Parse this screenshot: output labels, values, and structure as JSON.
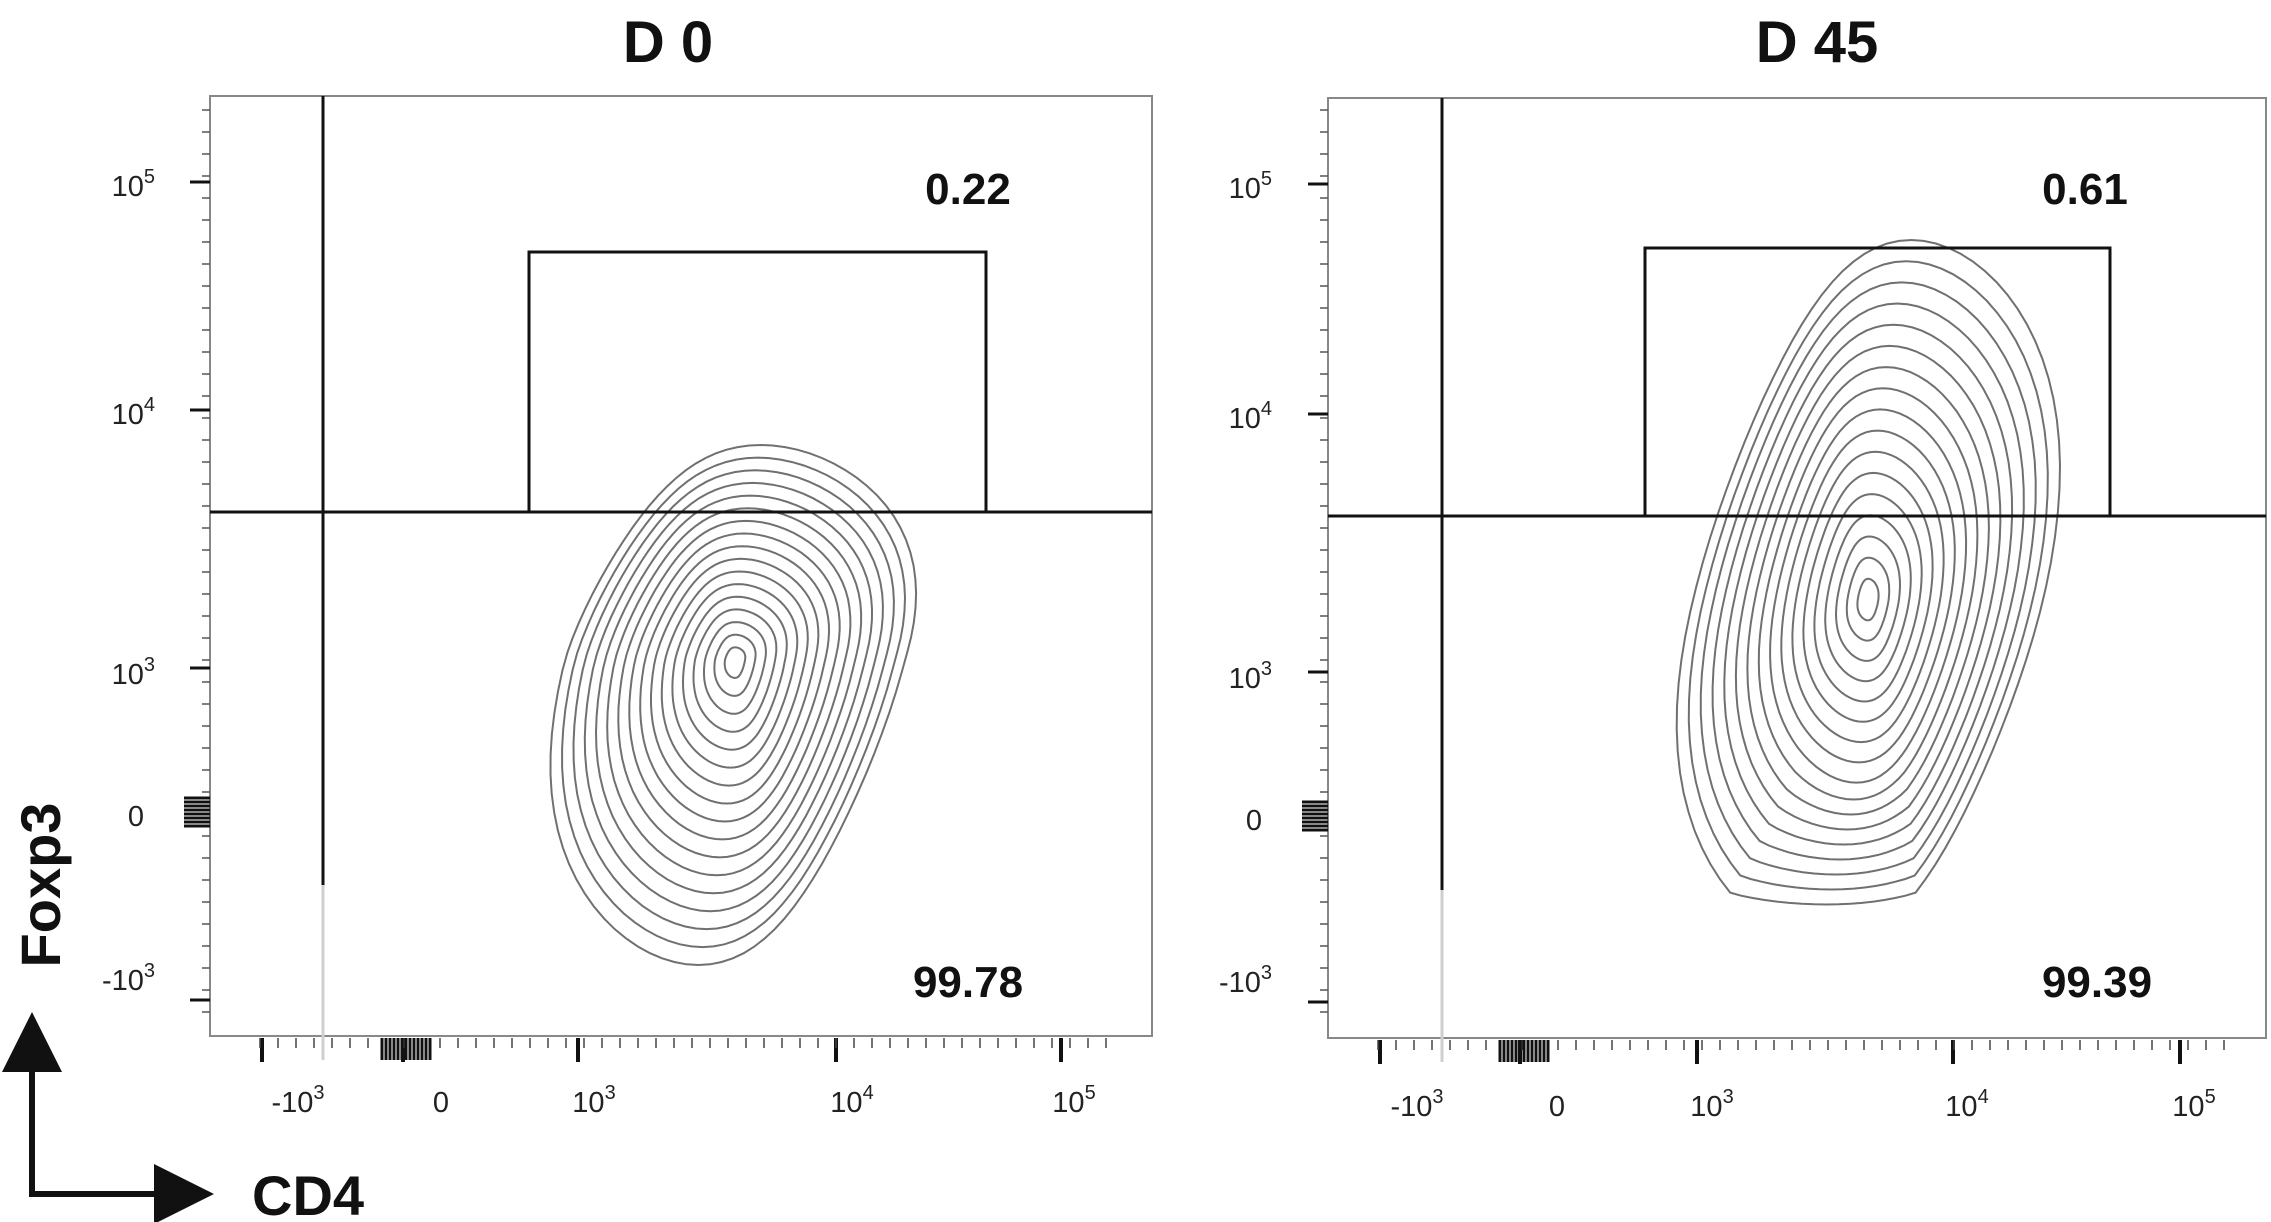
{
  "chart_data": [
    {
      "type": "contour",
      "title": "D 0",
      "xlabel": "CD4",
      "ylabel": "Foxp3",
      "x_ticks": [
        "-10^3",
        "0",
        "10^3",
        "10^4",
        "10^5"
      ],
      "y_ticks": [
        "10^5",
        "10^4",
        "10^3",
        "0",
        "-10^3"
      ],
      "x_scale": "biexponential",
      "y_scale": "biexponential",
      "gates": [
        {
          "region": "upper",
          "value": "0.22",
          "percent": 0.22
        },
        {
          "region": "lower",
          "value": "99.78",
          "percent": 99.78
        }
      ],
      "density_peak": {
        "x": 1900,
        "y": 1000
      }
    },
    {
      "type": "contour",
      "title": "D 45",
      "xlabel": "CD4",
      "ylabel": "Foxp3",
      "x_ticks": [
        "-10^3",
        "0",
        "10^3",
        "10^4",
        "10^5"
      ],
      "y_ticks": [
        "10^5",
        "10^4",
        "10^3",
        "0",
        "-10^3"
      ],
      "x_scale": "biexponential",
      "y_scale": "biexponential",
      "gates": [
        {
          "region": "upper",
          "value": "0.61",
          "percent": 0.61
        },
        {
          "region": "lower",
          "value": "99.39",
          "percent": 99.39
        }
      ],
      "density_peak": {
        "x": 3000,
        "y": 1800
      }
    }
  ],
  "axes": {
    "x_title": "CD4",
    "y_title": "Foxp3"
  },
  "colors": {
    "contour": "#707070",
    "frame": "#888888",
    "gate": "#111111"
  }
}
